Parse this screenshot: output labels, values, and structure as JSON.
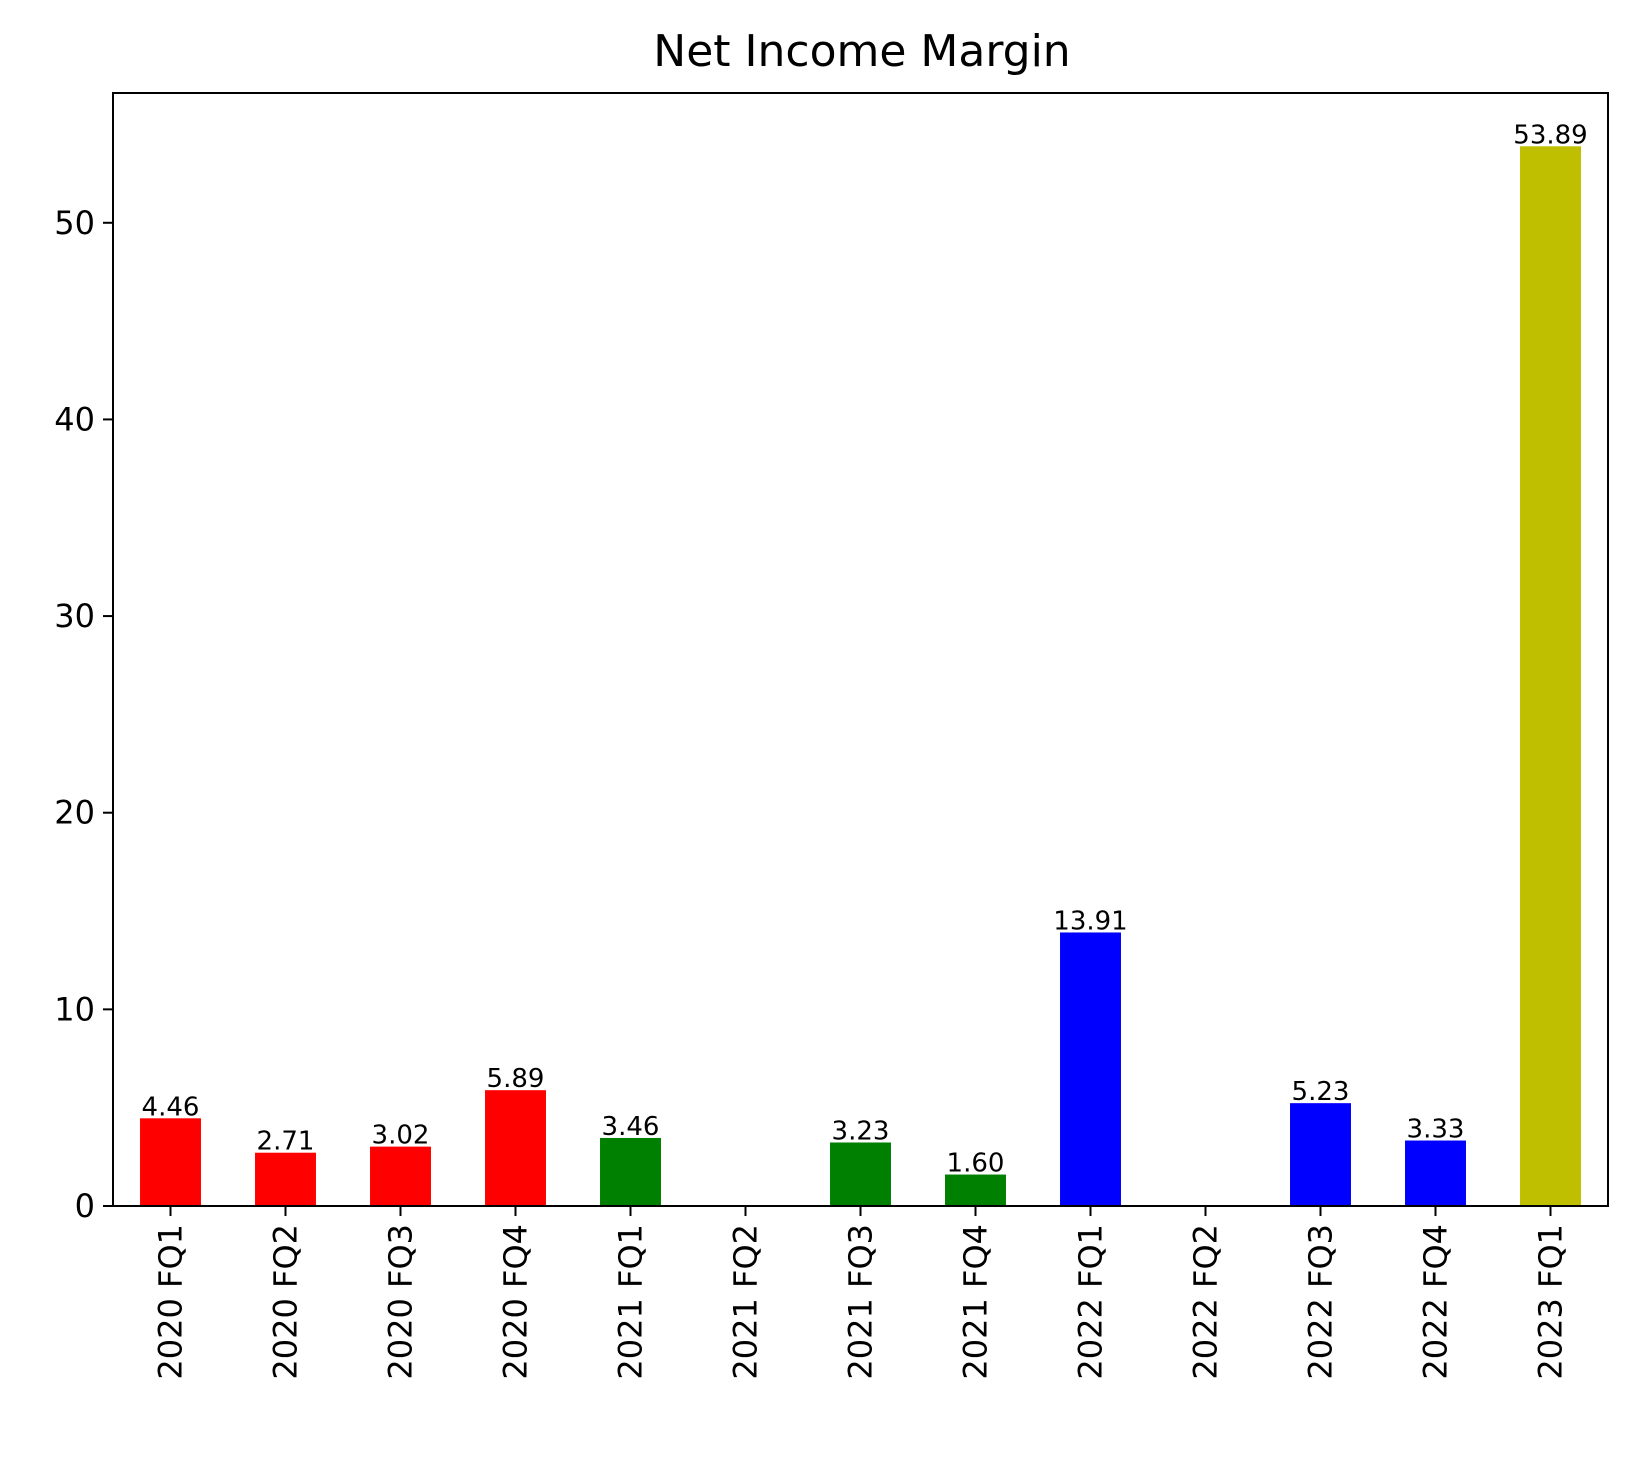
{
  "chart_data": {
    "type": "bar",
    "title": "Net Income Margin",
    "xlabel": "",
    "ylabel": "",
    "categories": [
      "2020 FQ1",
      "2020 FQ2",
      "2020 FQ3",
      "2020 FQ4",
      "2021 FQ1",
      "2021 FQ2",
      "2021 FQ3",
      "2021 FQ4",
      "2022 FQ1",
      "2022 FQ2",
      "2022 FQ3",
      "2022 FQ4",
      "2023 FQ1"
    ],
    "values": [
      4.46,
      2.71,
      3.02,
      5.89,
      3.46,
      0.05,
      3.23,
      1.6,
      13.91,
      0.05,
      5.23,
      3.33,
      53.89
    ],
    "data_labels": [
      "4.46",
      "2.71",
      "3.02",
      "5.89",
      "3.46",
      "",
      "3.23",
      "1.60",
      "13.91",
      "",
      "5.23",
      "3.33",
      "53.89"
    ],
    "colors": [
      "#ff0000",
      "#ff0000",
      "#ff0000",
      "#ff0000",
      "#008000",
      "#008000",
      "#008000",
      "#008000",
      "#0000ff",
      "#0000ff",
      "#0000ff",
      "#0000ff",
      "#bfbf00"
    ],
    "ylim": [
      0,
      56.6
    ],
    "yticks": [
      0,
      10,
      20,
      30,
      40,
      50
    ],
    "grid": false
  }
}
